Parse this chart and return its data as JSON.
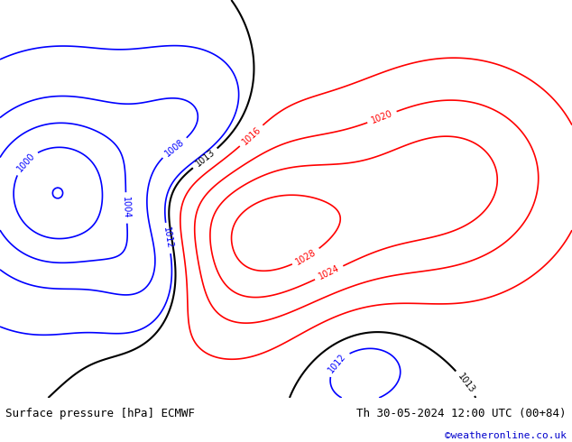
{
  "title_left": "Surface pressure [hPa] ECMWF",
  "title_right": "Th 30-05-2024 12:00 UTC (00+84)",
  "watermark": "©weatheronline.co.uk",
  "watermark_color": "#0000cc",
  "bg_color": "#e8f4e8",
  "land_color": "#c8e6c8",
  "sea_color": "#ddeeff",
  "fig_width": 6.34,
  "fig_height": 4.9,
  "dpi": 100,
  "bottom_bar_color": "#ffffff",
  "bottom_bar_height": 0.1,
  "title_fontsize": 9,
  "watermark_fontsize": 8
}
